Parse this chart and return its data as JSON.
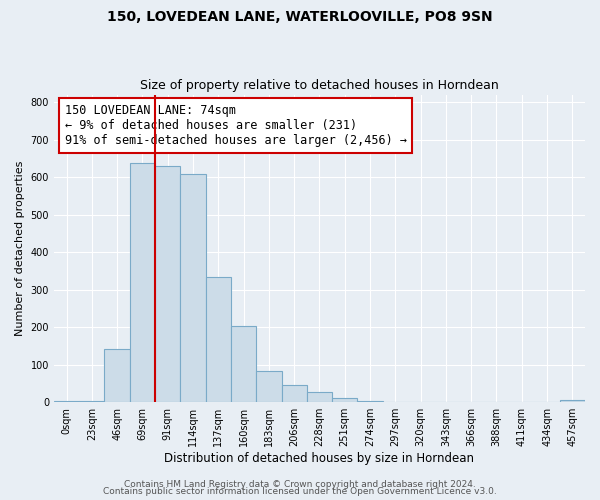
{
  "title": "150, LOVEDEAN LANE, WATERLOOVILLE, PO8 9SN",
  "subtitle": "Size of property relative to detached houses in Horndean",
  "xlabel": "Distribution of detached houses by size in Horndean",
  "ylabel": "Number of detached properties",
  "bar_labels": [
    "0sqm",
    "23sqm",
    "46sqm",
    "69sqm",
    "91sqm",
    "114sqm",
    "137sqm",
    "160sqm",
    "183sqm",
    "206sqm",
    "228sqm",
    "251sqm",
    "274sqm",
    "297sqm",
    "320sqm",
    "343sqm",
    "366sqm",
    "388sqm",
    "411sqm",
    "434sqm",
    "457sqm"
  ],
  "bar_values": [
    2,
    2,
    143,
    637,
    630,
    609,
    333,
    202,
    83,
    47,
    28,
    12,
    2,
    0,
    0,
    0,
    0,
    0,
    0,
    0,
    5
  ],
  "bar_color": "#ccdce8",
  "bar_edge_color": "#7aaac8",
  "property_line_x": 3.5,
  "property_line_color": "#cc0000",
  "annotation_text": "150 LOVEDEAN LANE: 74sqm\n← 9% of detached houses are smaller (231)\n91% of semi-detached houses are larger (2,456) →",
  "annotation_box_color": "white",
  "annotation_box_edge_color": "#cc0000",
  "ylim": [
    0,
    820
  ],
  "yticks": [
    0,
    100,
    200,
    300,
    400,
    500,
    600,
    700,
    800
  ],
  "footer_line1": "Contains HM Land Registry data © Crown copyright and database right 2024.",
  "footer_line2": "Contains public sector information licensed under the Open Government Licence v3.0.",
  "background_color": "#e8eef4",
  "plot_background_color": "#e8eef4",
  "grid_color": "#ffffff",
  "title_fontsize": 10,
  "subtitle_fontsize": 9,
  "tick_fontsize": 7,
  "xlabel_fontsize": 8.5,
  "ylabel_fontsize": 8,
  "footer_fontsize": 6.5
}
